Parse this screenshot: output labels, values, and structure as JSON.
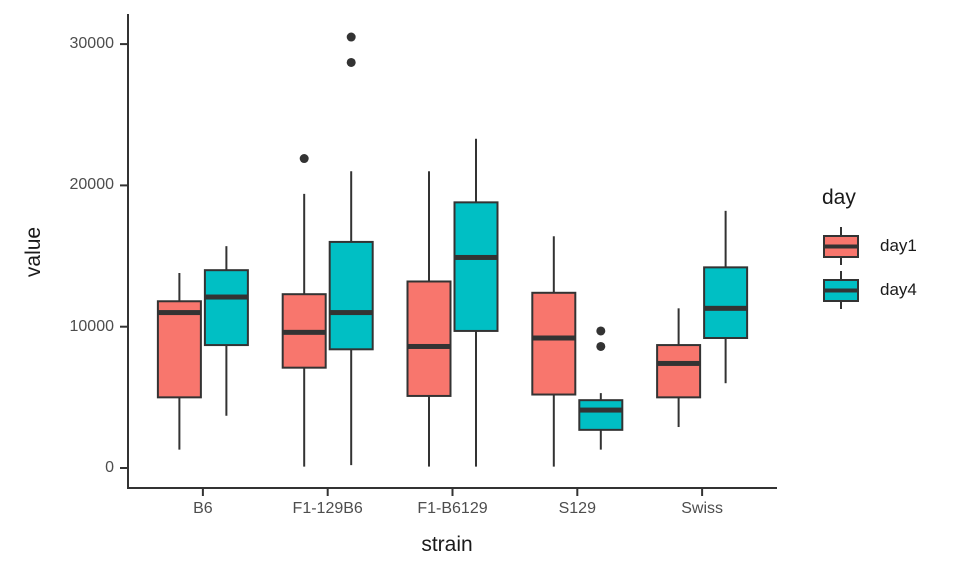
{
  "chart_data": {
    "type": "boxplot",
    "title": "",
    "xlabel": "strain",
    "ylabel": "value",
    "categories": [
      "B6",
      "F1-129B6",
      "F1-B6129",
      "S129",
      "Swiss"
    ],
    "yticks": [
      "0",
      "10000",
      "20000",
      "30000"
    ],
    "ylim": [
      0,
      31500
    ],
    "grid": false,
    "background_color": "#FFFFFF",
    "axis_color": "#333333",
    "tick_label_color": "#4D4D4D",
    "legend": {
      "title": "day",
      "position": "right"
    },
    "series": [
      {
        "name": "day1",
        "color": "#F8766D",
        "boxes": [
          {
            "category": "B6",
            "min": 1300,
            "q1": 5000,
            "median": 11000,
            "q3": 11800,
            "max": 13800,
            "outliers": []
          },
          {
            "category": "F1-129B6",
            "min": 100,
            "q1": 7100,
            "median": 9600,
            "q3": 12300,
            "max": 19400,
            "outliers": [
              21900
            ]
          },
          {
            "category": "F1-B6129",
            "min": 100,
            "q1": 5100,
            "median": 8600,
            "q3": 13200,
            "max": 21000,
            "outliers": []
          },
          {
            "category": "S129",
            "min": 100,
            "q1": 5200,
            "median": 9200,
            "q3": 12400,
            "max": 16400,
            "outliers": []
          },
          {
            "category": "Swiss",
            "min": 2900,
            "q1": 5000,
            "median": 7400,
            "q3": 8700,
            "max": 11300,
            "outliers": []
          }
        ]
      },
      {
        "name": "day4",
        "color": "#00BFC4",
        "boxes": [
          {
            "category": "B6",
            "min": 3700,
            "q1": 8700,
            "median": 12100,
            "q3": 14000,
            "max": 15700,
            "outliers": []
          },
          {
            "category": "F1-129B6",
            "min": 200,
            "q1": 8400,
            "median": 11000,
            "q3": 16000,
            "max": 21000,
            "outliers": [
              28700,
              30500
            ]
          },
          {
            "category": "F1-B6129",
            "min": 100,
            "q1": 9700,
            "median": 14900,
            "q3": 18800,
            "max": 23300,
            "outliers": []
          },
          {
            "category": "S129",
            "min": 1300,
            "q1": 2700,
            "median": 4100,
            "q3": 4800,
            "max": 5300,
            "outliers": [
              8600,
              9700
            ]
          },
          {
            "category": "Swiss",
            "min": 6000,
            "q1": 9200,
            "median": 11300,
            "q3": 14200,
            "max": 18200,
            "outliers": []
          }
        ]
      }
    ]
  }
}
